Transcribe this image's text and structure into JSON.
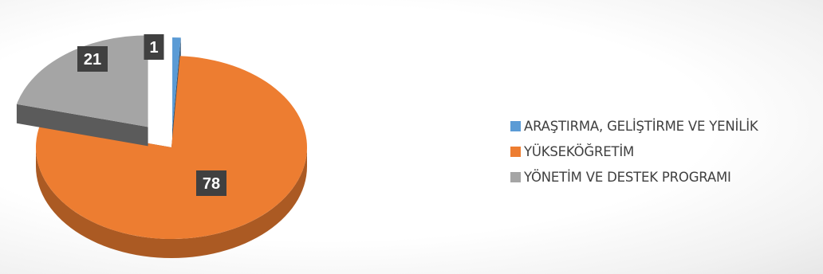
{
  "chart_data": {
    "type": "pie",
    "style": "3d-exploded",
    "title": "",
    "categories": [
      "ARAŞTIRMA, GELİŞTİRME VE YENİLİK",
      "YÜKSEKÖĞRETİM",
      "YÖNETİM VE DESTEK PROGRAMI"
    ],
    "values": [
      1,
      78,
      21
    ],
    "data_labels": [
      "1",
      "78",
      "21"
    ],
    "colors": [
      "#5B9BD5",
      "#ED7D31",
      "#A5A5A5"
    ],
    "legend_position": "right"
  }
}
